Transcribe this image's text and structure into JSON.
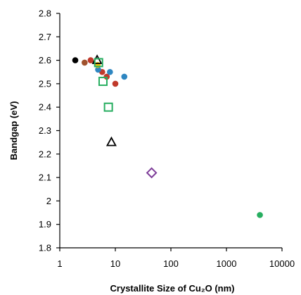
{
  "chart_data": {
    "type": "scatter",
    "title": "",
    "xlabel": "Crystallite Size of Cu₂O (nm)",
    "ylabel": "Bandgap (eV)",
    "xscale": "log",
    "xlim": [
      1,
      10000
    ],
    "ylim": [
      1.8,
      2.8
    ],
    "xticks": [
      "1",
      "10",
      "100",
      "1000",
      "10000"
    ],
    "yticks": [
      "1.8",
      "1.9",
      "2",
      "2.1",
      "2.2",
      "2.3",
      "2.4",
      "2.5",
      "2.6",
      "2.7",
      "2.8"
    ],
    "grid": false,
    "series": [
      {
        "marker": "filled-circle",
        "color": "#000000",
        "points": [
          [
            1.9,
            2.6
          ]
        ]
      },
      {
        "marker": "filled-circle",
        "color": "#a0522d",
        "points": [
          [
            2.8,
            2.59
          ]
        ]
      },
      {
        "marker": "filled-circle",
        "color": "#c0392b",
        "points": [
          [
            3.6,
            2.6
          ],
          [
            5.8,
            2.55
          ],
          [
            7.0,
            2.53
          ],
          [
            10.0,
            2.5
          ]
        ]
      },
      {
        "marker": "filled-circle",
        "color": "#2e86c1",
        "points": [
          [
            4.9,
            2.56
          ],
          [
            8.0,
            2.55
          ],
          [
            14.5,
            2.53
          ]
        ]
      },
      {
        "marker": "filled-circle",
        "color": "#f1c40f",
        "points": [
          [
            4.8,
            2.58
          ]
        ]
      },
      {
        "marker": "filled-circle",
        "color": "#27ae60",
        "points": [
          [
            4000,
            1.94
          ]
        ]
      },
      {
        "marker": "open-triangle",
        "color": "#000000",
        "points": [
          [
            4.7,
            2.6
          ],
          [
            8.5,
            2.25
          ]
        ]
      },
      {
        "marker": "open-square",
        "color": "#27ae60",
        "points": [
          [
            5.0,
            2.59
          ],
          [
            6.0,
            2.51
          ],
          [
            7.5,
            2.4
          ]
        ]
      },
      {
        "marker": "open-diamond",
        "color": "#7d3c98",
        "points": [
          [
            45,
            2.12
          ]
        ]
      }
    ]
  }
}
